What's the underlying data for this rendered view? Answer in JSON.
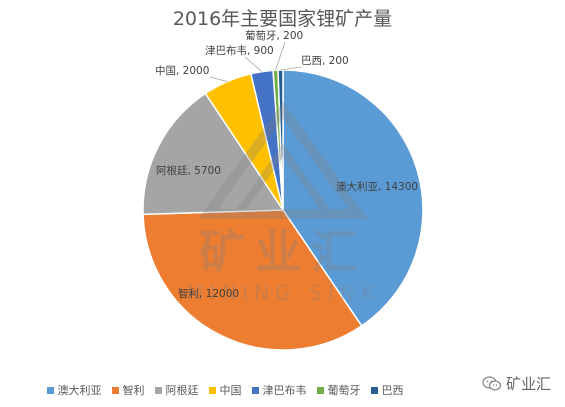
{
  "chart_data": {
    "type": "pie",
    "title": "2016年主要国家锂矿产量",
    "categories": [
      "澳大利亚",
      "智利",
      "阿根廷",
      "中国",
      "津巴布韦",
      "葡萄牙",
      "巴西"
    ],
    "values": [
      14300,
      12000,
      5700,
      2000,
      900,
      200,
      200
    ],
    "colors": [
      "#5B9BD5",
      "#ED7D31",
      "#A5A5A5",
      "#FFC000",
      "#4472C4",
      "#70AD47",
      "#255E91"
    ],
    "data_labels": [
      "澳大利亚, 14300",
      "智利, 12000",
      "阿根廷, 5700",
      "中国, 2000",
      "津巴布韦, 900",
      "葡萄牙, 200",
      "巴西, 200"
    ],
    "legend_position": "bottom"
  },
  "watermark": {
    "text": "矿业汇",
    "subtext": "MINING SINK"
  },
  "wechat": {
    "label": "矿业汇",
    "icon": "wechat-icon"
  }
}
